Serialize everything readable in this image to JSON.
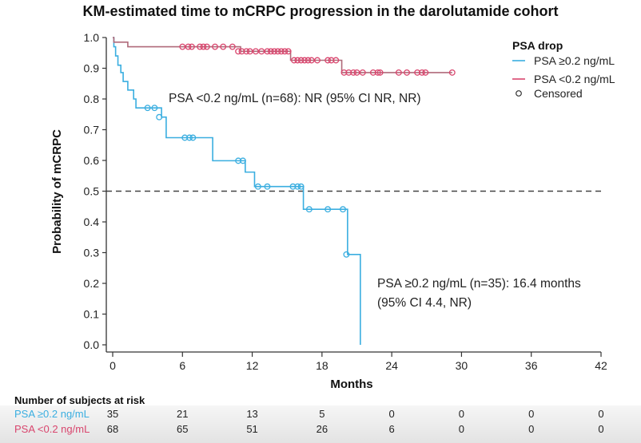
{
  "chart_data": {
    "type": "line",
    "subtype": "kaplan-meier",
    "title": "KM-estimated time to mCRPC progression in the darolutamide cohort",
    "xlabel": "Months",
    "ylabel": "Probability of mCRPC",
    "xlim": [
      0,
      42
    ],
    "ylim": [
      0,
      1.0
    ],
    "xticks": [
      0,
      6,
      12,
      18,
      24,
      30,
      36,
      42
    ],
    "yticks": [
      0.0,
      0.1,
      0.2,
      0.3,
      0.4,
      0.5,
      0.6,
      0.7,
      0.8,
      0.9,
      1.0
    ],
    "ytick_labels": [
      "0.0",
      "0.1",
      "0.2",
      "0.3",
      "0.4",
      "0.5",
      "0.6",
      "0.7",
      "0.8",
      "0.9",
      "1.0"
    ],
    "grid": false,
    "reference_line": {
      "y": 0.5,
      "style": "dashed",
      "color": "#444444"
    },
    "legend": {
      "title": "PSA drop",
      "placement": "top-right",
      "entries": [
        {
          "label": "PSA ≥0.2 ng/mL",
          "color": "#3aaee0",
          "marker": "line"
        },
        {
          "label": "PSA <0.2 ng/mL",
          "color": "#d9466e",
          "marker": "line"
        },
        {
          "label": "Censored",
          "color": "#333333",
          "marker": "circle"
        }
      ]
    },
    "series": [
      {
        "name": "PSA ≥0.2 ng/mL",
        "color": "#3aaee0",
        "steps": [
          [
            0,
            1.0
          ],
          [
            0.1,
            0.97
          ],
          [
            0.25,
            0.94
          ],
          [
            0.45,
            0.91
          ],
          [
            0.7,
            0.886
          ],
          [
            0.9,
            0.857
          ],
          [
            1.3,
            0.829
          ],
          [
            1.8,
            0.8
          ],
          [
            2.0,
            0.771
          ],
          [
            4.2,
            0.741
          ],
          [
            4.6,
            0.674
          ],
          [
            8.6,
            0.599
          ],
          [
            11.4,
            0.562
          ],
          [
            12.2,
            0.515
          ],
          [
            16.4,
            0.441
          ],
          [
            20.2,
            0.294
          ],
          [
            21.3,
            0.0
          ]
        ],
        "censored": [
          [
            3.0,
            0.771
          ],
          [
            3.6,
            0.771
          ],
          [
            4.0,
            0.741
          ],
          [
            6.2,
            0.674
          ],
          [
            6.6,
            0.674
          ],
          [
            6.9,
            0.674
          ],
          [
            10.8,
            0.599
          ],
          [
            11.2,
            0.599
          ],
          [
            12.5,
            0.515
          ],
          [
            13.3,
            0.515
          ],
          [
            15.5,
            0.515
          ],
          [
            15.9,
            0.515
          ],
          [
            16.2,
            0.515
          ],
          [
            16.9,
            0.441
          ],
          [
            18.5,
            0.441
          ],
          [
            19.8,
            0.441
          ],
          [
            20.1,
            0.294
          ]
        ]
      },
      {
        "name": "PSA <0.2 ng/mL",
        "color": "#d9466e",
        "steps": [
          [
            0,
            1.0
          ],
          [
            0.1,
            0.985
          ],
          [
            1.3,
            0.97
          ],
          [
            11.0,
            0.955
          ],
          [
            15.3,
            0.926
          ],
          [
            19.7,
            0.886
          ],
          [
            29.2,
            0.886
          ]
        ],
        "censored": [
          [
            6.0,
            0.97
          ],
          [
            6.5,
            0.97
          ],
          [
            6.8,
            0.97
          ],
          [
            7.5,
            0.97
          ],
          [
            7.8,
            0.97
          ],
          [
            8.1,
            0.97
          ],
          [
            8.8,
            0.97
          ],
          [
            9.5,
            0.97
          ],
          [
            10.3,
            0.97
          ],
          [
            10.8,
            0.955
          ],
          [
            11.1,
            0.955
          ],
          [
            11.5,
            0.955
          ],
          [
            11.8,
            0.955
          ],
          [
            12.3,
            0.955
          ],
          [
            12.8,
            0.955
          ],
          [
            13.3,
            0.955
          ],
          [
            13.6,
            0.955
          ],
          [
            13.9,
            0.955
          ],
          [
            14.2,
            0.955
          ],
          [
            14.5,
            0.955
          ],
          [
            14.8,
            0.955
          ],
          [
            15.1,
            0.955
          ],
          [
            15.6,
            0.926
          ],
          [
            15.9,
            0.926
          ],
          [
            16.2,
            0.926
          ],
          [
            16.5,
            0.926
          ],
          [
            16.8,
            0.926
          ],
          [
            17.1,
            0.926
          ],
          [
            17.6,
            0.926
          ],
          [
            18.5,
            0.926
          ],
          [
            18.8,
            0.926
          ],
          [
            19.2,
            0.926
          ],
          [
            19.9,
            0.886
          ],
          [
            20.3,
            0.886
          ],
          [
            20.7,
            0.886
          ],
          [
            21.0,
            0.886
          ],
          [
            21.5,
            0.886
          ],
          [
            22.4,
            0.886
          ],
          [
            22.8,
            0.886
          ],
          [
            23.0,
            0.886
          ],
          [
            24.6,
            0.886
          ],
          [
            25.3,
            0.886
          ],
          [
            26.2,
            0.886
          ],
          [
            26.6,
            0.886
          ],
          [
            26.9,
            0.886
          ],
          [
            29.2,
            0.886
          ]
        ]
      }
    ],
    "annotations": [
      {
        "text": "PSA <0.2 ng/mL (n=68): NR (95% CI NR, NR)",
        "x": 10.0,
        "y": 0.795
      },
      {
        "text": "PSA ≥0.2 ng/mL (n=35): 16.4 months",
        "x": 23.0,
        "y": 0.2
      },
      {
        "text": "(95% CI 4.4, NR)",
        "x": 23.0,
        "y": 0.13
      }
    ],
    "risk_table": {
      "title": "Number of subjects at risk",
      "timepoints": [
        0,
        6,
        12,
        18,
        24,
        30,
        36,
        42
      ],
      "rows": [
        {
          "label": "PSA ≥0.2 ng/mL",
          "color": "#3aaee0",
          "values": [
            35,
            21,
            13,
            5,
            0,
            0,
            0,
            0
          ]
        },
        {
          "label": "PSA <0.2 ng/mL",
          "color": "#d9466e",
          "values": [
            68,
            65,
            51,
            26,
            6,
            0,
            0,
            0
          ]
        }
      ]
    }
  }
}
